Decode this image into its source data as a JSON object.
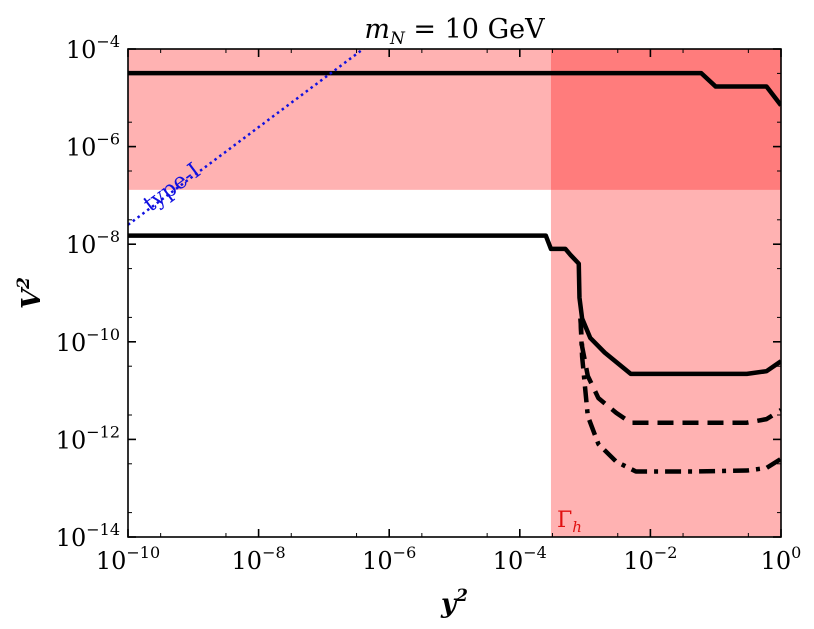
{
  "chart_data": {
    "type": "line",
    "title": "m_N = 10 GeV",
    "title_parts": {
      "var": "m",
      "sub": "N",
      "rest": " = 10 GeV"
    },
    "xlabel": "y²",
    "ylabel": "V²",
    "xlabel_parts": {
      "base": "y",
      "exp": "2"
    },
    "ylabel_parts": {
      "base": "V",
      "exp": "2"
    },
    "xscale": "log",
    "yscale": "log",
    "xlim": [
      1e-10,
      1
    ],
    "ylim": [
      1e-14,
      0.0001
    ],
    "xticks": [
      {
        "value": 1e-10,
        "base": "10",
        "exp": "−10"
      },
      {
        "value": 1e-08,
        "base": "10",
        "exp": "−8"
      },
      {
        "value": 1e-06,
        "base": "10",
        "exp": "−6"
      },
      {
        "value": 0.0001,
        "base": "10",
        "exp": "−4"
      },
      {
        "value": 0.01,
        "base": "10",
        "exp": "−2"
      },
      {
        "value": 1,
        "base": "10",
        "exp": "0"
      }
    ],
    "yticks": [
      {
        "value": 1e-14,
        "base": "10",
        "exp": "−14"
      },
      {
        "value": 1e-12,
        "base": "10",
        "exp": "−12"
      },
      {
        "value": 1e-10,
        "base": "10",
        "exp": "−10"
      },
      {
        "value": 1e-08,
        "base": "10",
        "exp": "−8"
      },
      {
        "value": 1e-06,
        "base": "10",
        "exp": "−6"
      },
      {
        "value": 0.0001,
        "base": "10",
        "exp": "−4"
      }
    ],
    "grid": false,
    "regions": [
      {
        "label": "",
        "x": [
          1e-10,
          1
        ],
        "y": [
          1.3e-07,
          0.0001
        ],
        "color": "#ff0000",
        "opacity": 0.3
      },
      {
        "label": "Γ_h",
        "label_parts": {
          "base": "Γ",
          "sub": "h"
        },
        "x": [
          0.0003,
          1
        ],
        "y": [
          1e-14,
          0.0001
        ],
        "color": "#ff0000",
        "opacity": 0.3
      }
    ],
    "series": [
      {
        "style": "solid",
        "color": "#000000",
        "x": [
          1e-10,
          0.001,
          0.06,
          0.1,
          0.6,
          1
        ],
        "y": [
          3.2e-05,
          3.2e-05,
          3.2e-05,
          1.7e-05,
          1.7e-05,
          7e-06
        ]
      },
      {
        "style": "solid",
        "color": "#000000",
        "x": [
          1e-10,
          0.00025,
          0.0003,
          0.0005,
          0.0006,
          0.0008,
          0.00082,
          0.0009,
          0.0012,
          0.002,
          0.005,
          0.05,
          0.3,
          0.6,
          1
        ],
        "y": [
          1.5e-08,
          1.5e-08,
          8e-09,
          8e-09,
          6e-09,
          4e-09,
          8e-10,
          3e-10,
          1.2e-10,
          6e-11,
          2.2e-11,
          2.2e-11,
          2.2e-11,
          2.5e-11,
          4e-11
        ]
      },
      {
        "style": "dashed",
        "color": "#000000",
        "x": [
          0.00085,
          0.0009,
          0.0011,
          0.0016,
          0.003,
          0.005,
          0.05,
          0.3,
          0.6,
          1
        ],
        "y": [
          3e-10,
          8e-11,
          2e-11,
          7e-12,
          3.5e-12,
          2.2e-12,
          2.2e-12,
          2.2e-12,
          2.6e-12,
          4e-12
        ]
      },
      {
        "style": "dashdot",
        "color": "#000000",
        "x": [
          0.00085,
          0.0009,
          0.0011,
          0.0016,
          0.003,
          0.006,
          0.05,
          0.3,
          0.6,
          1
        ],
        "y": [
          3e-10,
          5e-11,
          3e-12,
          8e-13,
          3.5e-13,
          2.2e-13,
          2.2e-13,
          2.3e-13,
          2.6e-13,
          4e-13
        ]
      },
      {
        "style": "dotted",
        "color": "#1010e0",
        "label": "type-I",
        "x": [
          1e-10,
          1e-05
        ],
        "y": [
          2.5e-08,
          0.0025
        ]
      }
    ]
  }
}
